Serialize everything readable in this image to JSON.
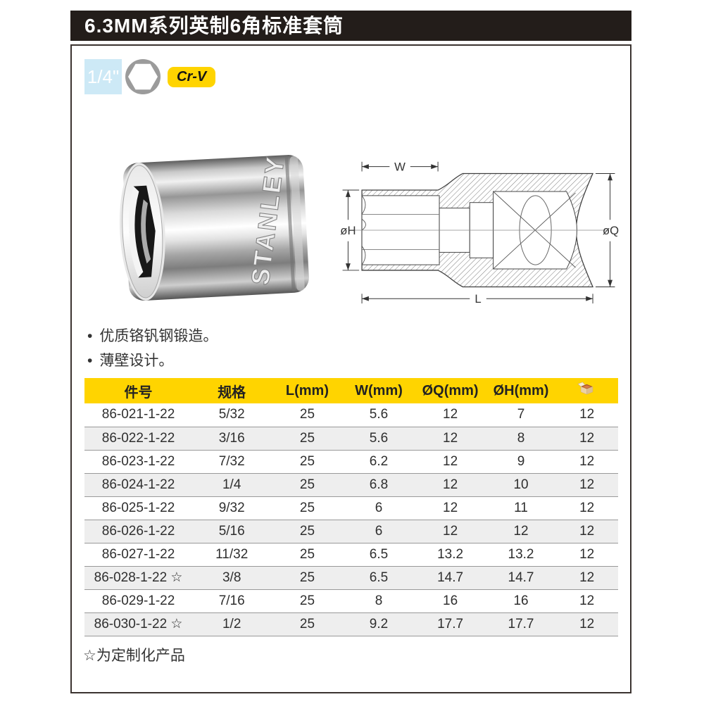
{
  "header": {
    "title": "6.3MM系列英制6角标准套筒"
  },
  "badges": {
    "drive_size": "1/4\"",
    "hex_icon": "hex-socket-icon",
    "material": "Cr-V"
  },
  "product": {
    "brand": "STANLEY"
  },
  "diagram": {
    "labels": {
      "w": "W",
      "h": "øH",
      "q": "øQ",
      "l": "L"
    }
  },
  "features": [
    {
      "bullet": "•",
      "text": "优质铬钒钢锻造。"
    },
    {
      "bullet": "•",
      "text": "薄壁设计。"
    }
  ],
  "table": {
    "columns": [
      "件号",
      "规格",
      "L(mm)",
      "W(mm)",
      "ØQ(mm)",
      "ØH(mm)"
    ],
    "pack_icon": "box-icon",
    "rows": [
      [
        "86-021-1-22",
        "5/32",
        "25",
        "5.6",
        "12",
        "7",
        "12"
      ],
      [
        "86-022-1-22",
        "3/16",
        "25",
        "5.6",
        "12",
        "8",
        "12"
      ],
      [
        "86-023-1-22",
        "7/32",
        "25",
        "6.2",
        "12",
        "9",
        "12"
      ],
      [
        "86-024-1-22",
        "1/4",
        "25",
        "6.8",
        "12",
        "10",
        "12"
      ],
      [
        "86-025-1-22",
        "9/32",
        "25",
        "6",
        "12",
        "11",
        "12"
      ],
      [
        "86-026-1-22",
        "5/16",
        "25",
        "6",
        "12",
        "12",
        "12"
      ],
      [
        "86-027-1-22",
        "11/32",
        "25",
        "6.5",
        "13.2",
        "13.2",
        "12"
      ],
      [
        "86-028-1-22 ☆",
        "3/8",
        "25",
        "6.5",
        "14.7",
        "14.7",
        "12"
      ],
      [
        "86-029-1-22",
        "7/16",
        "25",
        "8",
        "16",
        "16",
        "12"
      ],
      [
        "86-030-1-22 ☆",
        "1/2",
        "25",
        "9.2",
        "17.7",
        "17.7",
        "12"
      ]
    ]
  },
  "footnote": "☆为定制化产品",
  "colors": {
    "accent_yellow": "#ffd400",
    "title_bar": "#231d1a",
    "size_badge_blue": "#cde9f6",
    "row_alt": "#eeeeee"
  }
}
